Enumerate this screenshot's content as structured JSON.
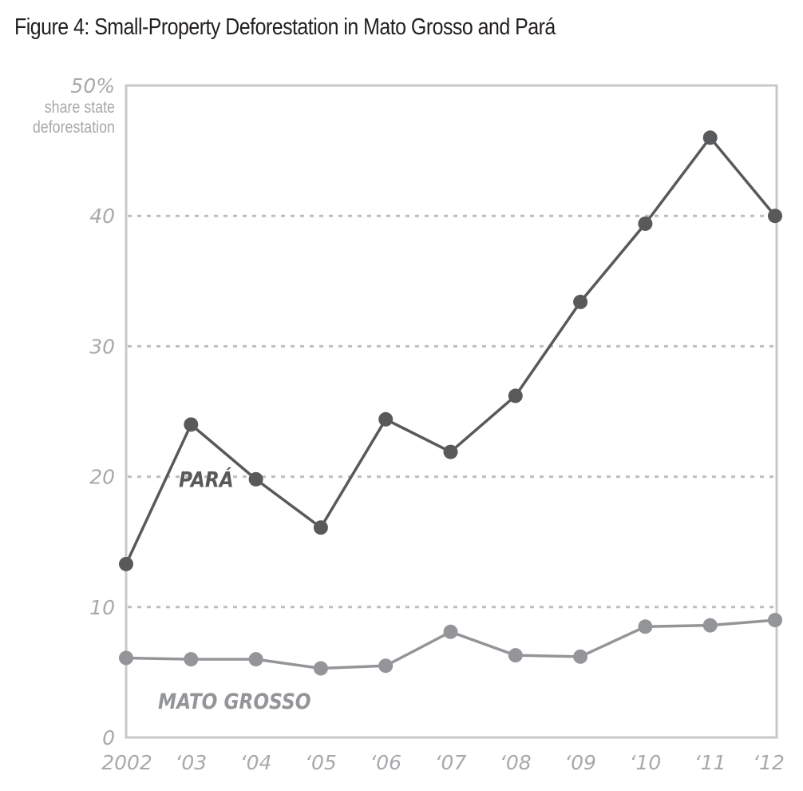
{
  "chart_data": {
    "type": "line",
    "title": "Figure 4: Small-Property Deforestation in Mato Grosso and Pará",
    "ylabel_lines": [
      "share state",
      "deforestation"
    ],
    "y_top_label": "50%",
    "x": [
      "2002",
      "‘03",
      "‘04",
      "‘05",
      "‘06",
      "‘07",
      "‘08",
      "‘09",
      "‘10",
      "‘11",
      "‘12"
    ],
    "ylim": [
      0,
      50
    ],
    "y_ticks": [
      "0",
      "10",
      "20",
      "30",
      "40"
    ],
    "grid": true,
    "series": [
      {
        "name": "PARÁ",
        "color": "#58595b",
        "values": [
          13.3,
          24.0,
          19.8,
          16.1,
          24.4,
          21.9,
          26.2,
          33.4,
          39.4,
          46.0,
          40.0
        ]
      },
      {
        "name": "MATO GROSSO",
        "color": "#939598",
        "values": [
          6.1,
          6.0,
          6.0,
          5.3,
          5.5,
          8.1,
          6.3,
          6.2,
          8.5,
          8.6,
          9.0
        ]
      }
    ]
  }
}
